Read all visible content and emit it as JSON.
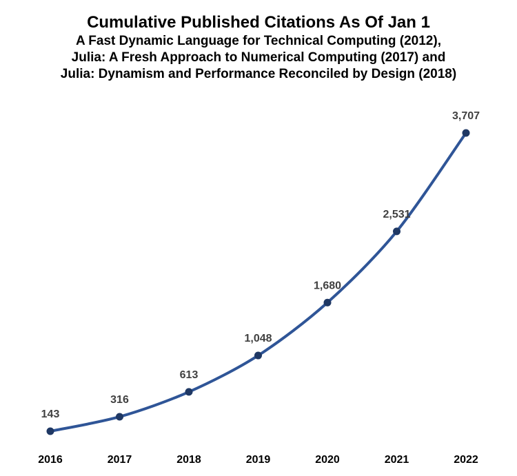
{
  "chart_data": {
    "type": "line",
    "title": "Cumulative Published Citations As Of Jan 1",
    "subtitle": [
      "A Fast Dynamic Language for Technical Computing (2012),",
      "Julia: A Fresh Approach to Numerical Computing (2017) and",
      "Julia: Dynamism and Performance Reconciled by Design (2018)"
    ],
    "categories": [
      "2016",
      "2017",
      "2018",
      "2019",
      "2020",
      "2021",
      "2022"
    ],
    "series": [
      {
        "values": [
          143,
          316,
          613,
          1048,
          1680,
          2531,
          3707
        ],
        "data_labels": [
          "143",
          "316",
          "613",
          "1,048",
          "1,680",
          "2,531",
          "3,707"
        ]
      }
    ],
    "xlabel": "",
    "ylabel": "",
    "grid": false,
    "legend": "none",
    "line_color": "#2f5597",
    "marker_color": "#1f3864"
  }
}
